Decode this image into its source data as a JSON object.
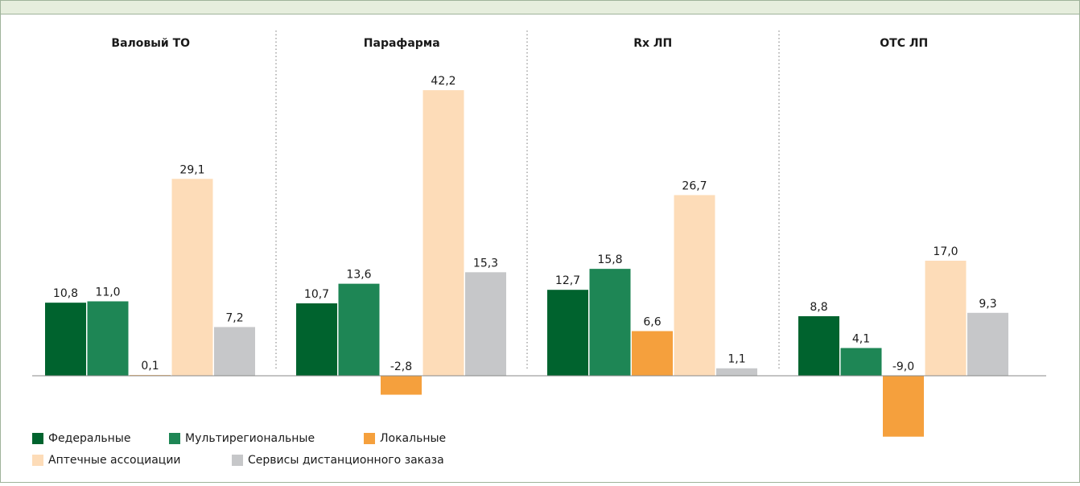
{
  "chart_data": {
    "type": "bar",
    "categories": [
      "Валовый ТО",
      "Парафарма",
      "Rx ЛП",
      "ОТС ЛП"
    ],
    "series": [
      {
        "name": "Федеральные",
        "color": "#00632e",
        "values": [
          10.8,
          10.7,
          12.7,
          8.8
        ],
        "value_labels": [
          "10,8",
          "10,7",
          "12,7",
          "8,8"
        ]
      },
      {
        "name": "Мультирегиональные",
        "color": "#1e8655",
        "values": [
          11.0,
          13.6,
          15.8,
          4.1
        ],
        "value_labels": [
          "11,0",
          "13,6",
          "15,8",
          "4,1"
        ]
      },
      {
        "name": "Локальные",
        "color": "#f5a03d",
        "values": [
          0.1,
          -2.8,
          6.6,
          -9.0
        ],
        "value_labels": [
          "0,1",
          "-2,8",
          "6,6",
          "-9,0"
        ]
      },
      {
        "name": "Аптечные ассоциации",
        "color": "#fddcb8",
        "values": [
          29.1,
          42.2,
          26.7,
          17.0
        ],
        "value_labels": [
          "29,1",
          "42,2",
          "26,7",
          "17,0"
        ]
      },
      {
        "name": "Сервисы дистанционного заказа",
        "color": "#c6c7c9",
        "values": [
          7.2,
          15.3,
          1.1,
          9.3
        ],
        "value_labels": [
          "7,2",
          "15,3",
          "1,1",
          "9,3"
        ]
      }
    ]
  }
}
